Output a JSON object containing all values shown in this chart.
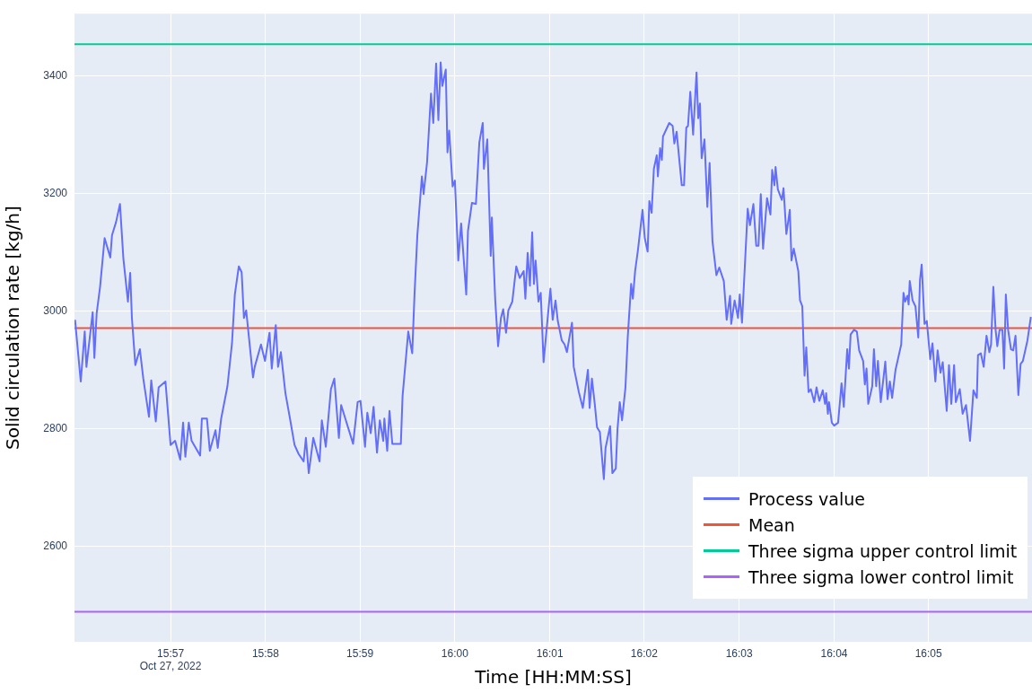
{
  "chart_data": {
    "type": "line",
    "xlabel": "Time [HH:MM:SS]",
    "ylabel": "Solid circulation rate [kg/h]",
    "xlim": [
      15.9331,
      16.1015
    ],
    "xticks": [
      {
        "value": 15.95,
        "label": "15:57\nOct 27, 2022"
      },
      {
        "value": 15.9667,
        "label": "15:58"
      },
      {
        "value": 15.9833,
        "label": "15:59"
      },
      {
        "value": 16.0,
        "label": "16:00"
      },
      {
        "value": 16.0167,
        "label": "16:01"
      },
      {
        "value": 16.0333,
        "label": "16:02"
      },
      {
        "value": 16.05,
        "label": "16:03"
      },
      {
        "value": 16.0667,
        "label": "16:04"
      },
      {
        "value": 16.0833,
        "label": "16:05"
      }
    ],
    "ylim": [
      2437,
      3506
    ],
    "yticks": [
      2600,
      2800,
      3000,
      3200,
      3400
    ],
    "grid": true,
    "legend": "bottom right",
    "marker": "none",
    "line_style": "solid",
    "series": [
      {
        "name": "Process value",
        "color": "#636efa",
        "x": [
          15.9332,
          15.9342,
          15.9349,
          15.9352,
          15.9363,
          15.9366,
          15.937,
          15.9376,
          15.9384,
          15.9394,
          15.9397,
          15.9404,
          15.9411,
          15.9417,
          15.9425,
          15.9429,
          15.9432,
          15.9438,
          15.9446,
          15.9452,
          15.9462,
          15.9466,
          15.9474,
          15.9479,
          15.9491,
          15.95,
          15.9508,
          15.9517,
          15.9522,
          15.9526,
          15.9532,
          15.9537,
          15.9552,
          15.9555,
          15.9564,
          15.9569,
          15.9579,
          15.9583,
          15.9589,
          15.96,
          15.9608,
          15.9613,
          15.962,
          15.9625,
          15.9629,
          15.9633,
          15.9645,
          15.9648,
          15.9659,
          15.9666,
          15.9674,
          15.9678,
          15.9685,
          15.9689,
          15.9694,
          15.9702,
          15.971,
          15.9718,
          15.9725,
          15.9734,
          15.9738,
          15.9743,
          15.9751,
          15.9762,
          15.9766,
          15.9773,
          15.9782,
          15.9788,
          15.9796,
          15.98,
          15.9821,
          15.9829,
          15.9834,
          15.9842,
          15.9846,
          15.9852,
          15.9857,
          15.9863,
          15.9868,
          15.9874,
          15.9876,
          15.9881,
          15.9885,
          15.989,
          15.9905,
          15.9908,
          15.9918,
          15.9925,
          15.9929,
          15.9934,
          15.9942,
          15.9945,
          15.9951,
          15.9958,
          15.9962,
          15.9967,
          15.9971,
          15.9975,
          15.9978,
          15.9984,
          15.9987,
          15.999,
          15.9996,
          16.0,
          16.0006,
          16.0011,
          16.002,
          16.0023,
          16.003,
          16.0037,
          16.0043,
          16.0049,
          16.0051,
          16.0057,
          16.0063,
          16.0065,
          16.0071,
          16.0076,
          16.0081,
          16.0085,
          16.009,
          16.0094,
          16.0101,
          16.0108,
          16.0114,
          16.0121,
          16.0124,
          16.0128,
          16.0132,
          16.0136,
          16.0139,
          16.0142,
          16.0147,
          16.0151,
          16.0156,
          16.0168,
          16.0172,
          16.0177,
          16.0181,
          16.0188,
          16.0193,
          16.0197,
          16.0206,
          16.0209,
          16.0218,
          16.0225,
          16.0234,
          16.0237,
          16.0241,
          16.0246,
          16.025,
          16.0255,
          16.0262,
          16.0265,
          16.0273,
          16.0277,
          16.0283,
          16.0286,
          16.029,
          16.0294,
          16.03,
          16.0304,
          16.031,
          16.0313,
          16.0317,
          16.0322,
          16.033,
          16.0334,
          16.0339,
          16.0342,
          16.0346,
          16.035,
          16.0355,
          16.0357,
          16.0361,
          16.0364,
          16.0366,
          16.0377,
          16.0383,
          16.0386,
          16.039,
          16.0399,
          16.0403,
          16.0407,
          16.041,
          16.0414,
          16.0419,
          16.0425,
          16.0428,
          16.0431,
          16.0434,
          16.0439,
          16.0444,
          16.0448,
          16.0453,
          16.046,
          16.0465,
          16.0473,
          16.0478,
          16.0484,
          16.0486,
          16.0492,
          16.0498,
          16.0501,
          16.0505,
          16.0515,
          16.0519,
          16.0525,
          16.053,
          16.0534,
          16.0538,
          16.0542,
          16.0549,
          16.0555,
          16.0558,
          16.0562,
          16.0564,
          16.0568,
          16.0575,
          16.0578,
          16.0583,
          16.0586,
          16.0589,
          16.0592,
          16.0596,
          16.0604,
          16.0607,
          16.0611,
          16.0615,
          16.0618,
          16.0622,
          16.0626,
          16.0632,
          16.0636,
          16.0641,
          16.0647,
          16.0651,
          16.0653,
          16.0656,
          16.0658,
          16.0663,
          16.0667,
          16.0674,
          16.068,
          16.0684,
          16.069,
          16.0693,
          16.0696,
          16.0702,
          16.0707,
          16.0711,
          16.0718,
          16.0721,
          16.0724,
          16.0727,
          16.0734,
          16.0737,
          16.0741,
          16.0744,
          16.0749,
          16.0757,
          16.0761,
          16.0765,
          16.0769,
          16.0775,
          16.0785,
          16.0789,
          16.0792,
          16.0796,
          16.0798,
          16.08,
          16.0805,
          16.081,
          16.0815,
          16.0818,
          16.0821,
          16.0826,
          16.083,
          16.0836,
          16.084,
          16.0845,
          16.0849,
          16.0854,
          16.0858,
          16.0865,
          16.0869,
          16.0873,
          16.0878,
          16.0881,
          16.0888,
          16.0893,
          16.0899,
          16.0906,
          16.0912,
          16.0918,
          16.092,
          16.0925,
          16.093,
          16.0935,
          16.094,
          16.0943,
          16.0947,
          16.0951,
          16.0954,
          16.0958,
          16.0963,
          16.0966,
          16.0969,
          16.0973,
          16.0978,
          16.0982,
          16.0986,
          16.0991,
          16.0995,
          16.0999,
          16.1007,
          16.1013
        ],
        "values": [
          2985,
          2880,
          2965,
          2905,
          2998,
          2920,
          2996,
          3041,
          3124,
          3091,
          3129,
          3151,
          3182,
          3089,
          3016,
          3065,
          2988,
          2908,
          2935,
          2885,
          2820,
          2882,
          2812,
          2870,
          2880,
          2772,
          2779,
          2747,
          2810,
          2752,
          2810,
          2779,
          2754,
          2817,
          2817,
          2762,
          2797,
          2767,
          2817,
          2872,
          2945,
          3028,
          3076,
          3066,
          2988,
          3001,
          2887,
          2905,
          2943,
          2915,
          2963,
          2902,
          2976,
          2905,
          2930,
          2860,
          2817,
          2772,
          2757,
          2744,
          2784,
          2724,
          2784,
          2744,
          2814,
          2769,
          2867,
          2885,
          2784,
          2840,
          2774,
          2845,
          2847,
          2769,
          2827,
          2792,
          2837,
          2759,
          2814,
          2779,
          2817,
          2762,
          2830,
          2774,
          2774,
          2855,
          2965,
          2928,
          3028,
          3129,
          3229,
          3199,
          3252,
          3370,
          3320,
          3421,
          3325,
          3423,
          3383,
          3411,
          3270,
          3307,
          3212,
          3222,
          3086,
          3149,
          3028,
          3136,
          3184,
          3182,
          3287,
          3320,
          3242,
          3292,
          3094,
          3159,
          3018,
          2940,
          2988,
          3003,
          2963,
          3001,
          3016,
          3076,
          3056,
          3068,
          3021,
          3099,
          3043,
          3134,
          3046,
          3086,
          3016,
          3031,
          2913,
          3038,
          2985,
          3018,
          2983,
          2950,
          2943,
          2930,
          2980,
          2905,
          2862,
          2835,
          2900,
          2835,
          2885,
          2842,
          2802,
          2794,
          2714,
          2767,
          2804,
          2724,
          2732,
          2799,
          2845,
          2814,
          2870,
          2955,
          3046,
          3021,
          3068,
          3104,
          3172,
          3124,
          3101,
          3187,
          3167,
          3242,
          3265,
          3229,
          3277,
          3257,
          3297,
          3320,
          3315,
          3285,
          3305,
          3214,
          3214,
          3312,
          3315,
          3373,
          3300,
          3406,
          3328,
          3353,
          3260,
          3292,
          3177,
          3252,
          3119,
          3061,
          3074,
          3051,
          2985,
          3026,
          2978,
          3018,
          2988,
          3028,
          2980,
          3174,
          3146,
          3182,
          3111,
          3111,
          3199,
          3106,
          3192,
          3164,
          3240,
          3214,
          3245,
          3207,
          3189,
          3209,
          3131,
          3151,
          3172,
          3086,
          3106,
          3068,
          3018,
          3008,
          2890,
          2938,
          2862,
          2867,
          2845,
          2870,
          2847,
          2865,
          2842,
          2860,
          2825,
          2845,
          2810,
          2805,
          2810,
          2877,
          2837,
          2935,
          2902,
          2960,
          2968,
          2965,
          2933,
          2915,
          2875,
          2902,
          2842,
          2872,
          2935,
          2872,
          2915,
          2845,
          2914,
          2850,
          2880,
          2852,
          2900,
          2943,
          3031,
          3016,
          3026,
          3011,
          3051,
          3018,
          3008,
          2955,
          3053,
          3079,
          2978,
          2983,
          2918,
          2945,
          2880,
          2933,
          2895,
          2913,
          2830,
          2908,
          2842,
          2908,
          2845,
          2867,
          2825,
          2840,
          2779,
          2865,
          2852,
          2925,
          2928,
          2905,
          2958,
          2930,
          2943,
          3041,
          2968,
          2940,
          2968,
          2968,
          2902,
          3028,
          2968,
          2935,
          2933,
          2958,
          2857,
          2910,
          2915,
          2950,
          2990
        ]
      }
    ],
    "ref_lines": [
      {
        "axis": "y",
        "value": 2971,
        "label": "Mean",
        "color": "#ef553b"
      },
      {
        "axis": "y",
        "value": 3454,
        "label": "Three sigma upper control limit",
        "color": "#00cc96"
      },
      {
        "axis": "y",
        "value": 2488,
        "label": "Three sigma lower control limit",
        "color": "#ab63fa"
      }
    ]
  }
}
